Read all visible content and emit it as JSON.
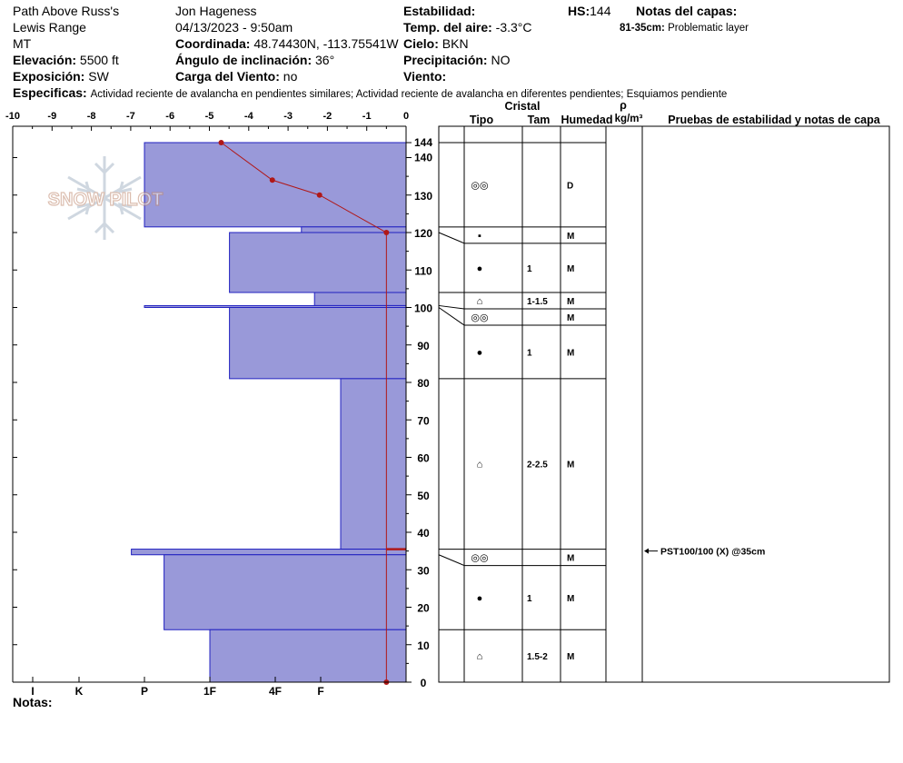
{
  "header": {
    "location": "Path Above Russ's",
    "range": "Lewis Range",
    "state": "MT",
    "elevation_label": "Elevación:",
    "elevation_value": "5500 ft",
    "aspect_label": "Exposición:",
    "aspect_value": "SW",
    "observer": "Jon Hageness",
    "datetime": "04/13/2023 - 9:50am",
    "coord_label": "Coordinada:",
    "coord_value": "48.74430N, -113.75541W",
    "slope_label": "Ángulo de inclinación:",
    "slope_value": "36°",
    "wind_load_label": "Carga del Viento:",
    "wind_load_value": "no",
    "stability_label": "Estabilidad:",
    "air_temp_label": "Temp. del aire:",
    "air_temp_value": "-3.3°C",
    "sky_label": "Cielo:",
    "sky_value": "BKN",
    "precip_label": "Precipitación:",
    "precip_value": "NO",
    "wind_label": "Viento:",
    "hs_label": "HS:",
    "hs_value": "144",
    "layer_notes_label": "Notas del capas:",
    "layer_note_range": "81-35cm:",
    "layer_note_text": "Problematic layer",
    "specifics_label": "Especificas:",
    "specifics_text": "Actividad reciente de avalancha en pendientes similares; Actividad reciente de avalancha en diferentes pendientes; Esquiamos pendiente",
    "notes_label": "Notas:"
  },
  "columns": {
    "crystal_label": "Cristal",
    "type_label": "Tipo",
    "size_label": "Tam",
    "moisture_label": "Humedad",
    "density_symbol": "ρ",
    "density_unit": "kg/m³",
    "tests_label": "Pruebas de estabilidad y notas de capa"
  },
  "logo_text": "SNOW PILOT",
  "colors": {
    "layer_fill": "#9999d9",
    "layer_edge": "#2020c0",
    "temp_line": "#b01818",
    "axis": "#000000"
  },
  "chart_data": {
    "type": "snow_profile",
    "temperature_axis": {
      "ticks": [
        -10,
        -9,
        -8,
        -7,
        -6,
        -5,
        -4,
        -3,
        -2,
        -1,
        0
      ],
      "range": [
        -10,
        0
      ]
    },
    "height_axis": {
      "ticks": [
        0,
        10,
        20,
        30,
        40,
        50,
        60,
        70,
        80,
        90,
        100,
        110,
        120,
        130,
        140,
        144
      ],
      "range": [
        0,
        144
      ]
    },
    "hardness_axis": {
      "ticks": [
        "I",
        "K",
        "P",
        "1F",
        "4F",
        "F"
      ]
    },
    "layers": [
      {
        "top": 144,
        "bottom": 121.5,
        "hardness_index": 4.0,
        "type_icon": "◎◎",
        "size": "",
        "moisture": "D"
      },
      {
        "top": 121.5,
        "bottom": 120,
        "hardness_index": 1.6,
        "type_icon": "▪",
        "size": "",
        "moisture": "M"
      },
      {
        "top": 120,
        "bottom": 104,
        "hardness_index": 2.7,
        "type_icon": "●",
        "size": "1",
        "moisture": "M"
      },
      {
        "top": 104,
        "bottom": 100.5,
        "hardness_index": 1.4,
        "type_icon": "⌂",
        "size": "1-1.5",
        "moisture": "M"
      },
      {
        "top": 100.5,
        "bottom": 100,
        "hardness_index": 4.0,
        "type_icon": "◎◎",
        "size": "",
        "moisture": "M"
      },
      {
        "top": 100,
        "bottom": 81,
        "hardness_index": 2.7,
        "type_icon": "●",
        "size": "1",
        "moisture": "M"
      },
      {
        "top": 81,
        "bottom": 35.5,
        "hardness_index": 1.0,
        "type_icon": "⌂",
        "size": "2-2.5",
        "moisture": "M"
      },
      {
        "top": 35.5,
        "bottom": 34,
        "hardness_index": 4.2,
        "type_icon": "◎◎",
        "size": "",
        "moisture": "M"
      },
      {
        "top": 34,
        "bottom": 14,
        "hardness_index": 3.7,
        "type_icon": "●",
        "size": "1",
        "moisture": "M"
      },
      {
        "top": 14,
        "bottom": 0,
        "hardness_index": 3.0,
        "type_icon": "⌂",
        "size": "1.5-2",
        "moisture": "M"
      }
    ],
    "temperature_profile": [
      {
        "height": 144,
        "temp": -4.7
      },
      {
        "height": 134,
        "temp": -3.4
      },
      {
        "height": 130,
        "temp": -2.2
      },
      {
        "height": 120,
        "temp": -0.5
      },
      {
        "height": 0,
        "temp": -0.5
      }
    ],
    "stability_tests": [
      {
        "height": 35,
        "label": "PST100/100 (X) @35cm"
      }
    ]
  }
}
